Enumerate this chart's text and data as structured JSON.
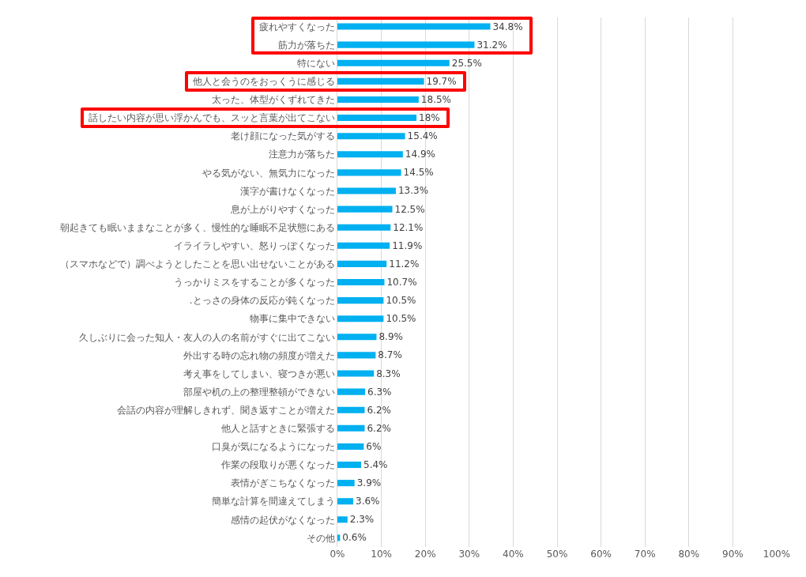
{
  "chart_data": {
    "type": "bar",
    "orientation": "horizontal",
    "categories": [
      "疲れやすくなった",
      "筋力が落ちた",
      "特にない",
      "他人と会うのをおっくうに感じる",
      "太った、体型がくずれてきた",
      "話したい内容が思い浮かんでも、スッと言葉が出てこない",
      "老け顔になった気がする",
      "注意力が落ちた",
      "やる気がない、無気力になった",
      "漢字が書けなくなった",
      "息が上がりやすくなった",
      "朝起きても眠いままなことが多く、慢性的な睡眠不足状態にある",
      "イライラしやすい、怒りっぽくなった",
      "（スマホなどで）調べようとしたことを思い出せないことがある",
      "うっかりミスをすることが多くなった",
      ".とっさの身体の反応が鈍くなった",
      "物事に集中できない",
      "久しぶりに会った知人・友人の人の名前がすぐに出てこない",
      "外出する時の忘れ物の頻度が増えた",
      "考え事をしてしまい、寝つきが悪い",
      "部屋や机の上の整理整頓ができない",
      "会話の内容が理解しきれず、聞き返すことが増えた",
      "他人と話すときに緊張する",
      "口臭が気になるようになった",
      "作業の段取りが悪くなった",
      "表情がぎこちなくなった",
      "簡単な計算を間違えてしまう",
      "感情の起伏がなくなった",
      "その他"
    ],
    "values": [
      34.8,
      31.2,
      25.5,
      19.7,
      18.5,
      18,
      15.4,
      14.9,
      14.5,
      13.3,
      12.5,
      12.1,
      11.9,
      11.2,
      10.7,
      10.5,
      10.5,
      8.9,
      8.7,
      8.3,
      6.3,
      6.2,
      6.2,
      6,
      5.4,
      3.9,
      3.6,
      2.3,
      0.6
    ],
    "value_labels": [
      "34.8%",
      "31.2%",
      "25.5%",
      "19.7%",
      "18.5%",
      "18%",
      "15.4%",
      "14.9%",
      "14.5%",
      "13.3%",
      "12.5%",
      "12.1%",
      "11.9%",
      "11.2%",
      "10.7%",
      "10.5%",
      "10.5%",
      "8.9%",
      "8.7%",
      "8.3%",
      "6.3%",
      "6.2%",
      "6.2%",
      "6%",
      "5.4%",
      "3.9%",
      "3.6%",
      "2.3%",
      "0.6%"
    ],
    "color": "#00b0f0",
    "xlim": [
      0,
      100
    ],
    "xticks": [
      {
        "value": 0,
        "label": "0%"
      },
      {
        "value": 10,
        "label": "10%"
      },
      {
        "value": 20,
        "label": "20%"
      },
      {
        "value": 30,
        "label": "30%"
      },
      {
        "value": 40,
        "label": "40%"
      },
      {
        "value": 50,
        "label": "50%"
      },
      {
        "value": 60,
        "label": "60%"
      },
      {
        "value": 70,
        "label": "70%"
      },
      {
        "value": 80,
        "label": "80%"
      },
      {
        "value": 90,
        "label": "90%"
      },
      {
        "value": 100,
        "label": "100%"
      }
    ],
    "grid": "x"
  }
}
